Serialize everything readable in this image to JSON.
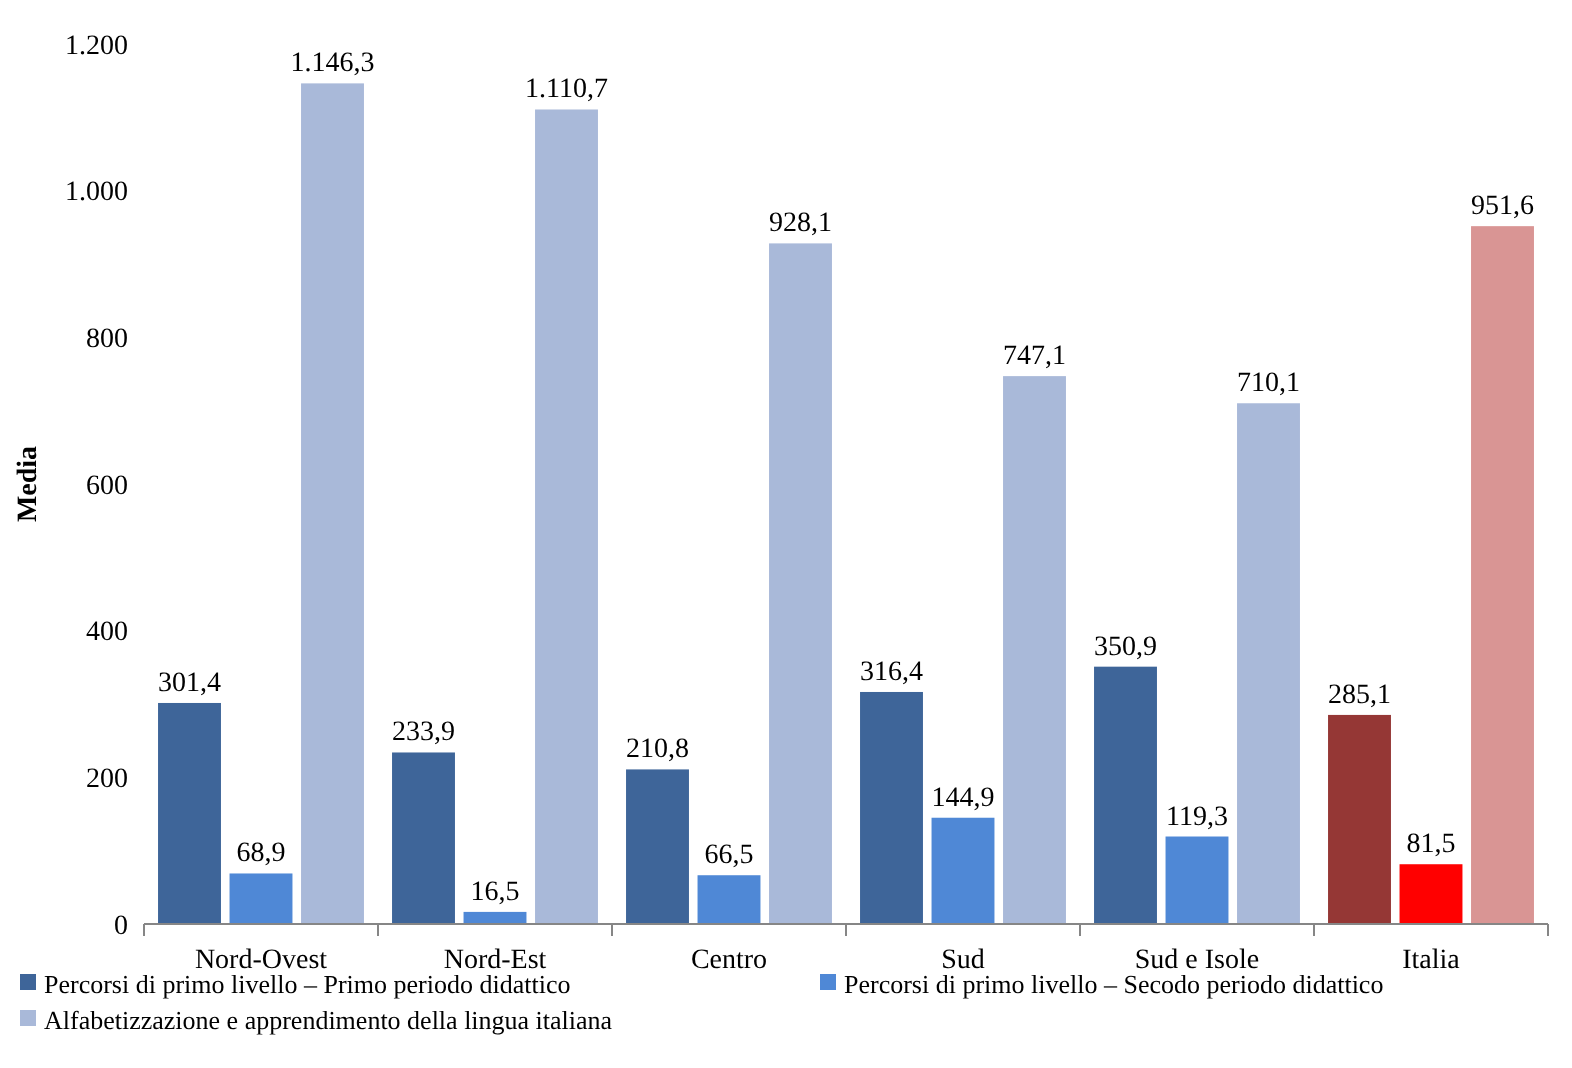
{
  "chart_data": {
    "type": "bar",
    "ylabel": "Media",
    "categories": [
      "Nord-Ovest",
      "Nord-Est",
      "Centro",
      "Sud",
      "Sud e Isole",
      "Italia"
    ],
    "series": [
      {
        "name": "Percorsi di primo livello – Primo periodo didattico",
        "color": "#3e6599",
        "colors": [
          "#3e6599",
          "#3e6599",
          "#3e6599",
          "#3e6599",
          "#3e6599",
          "#953735"
        ],
        "values": [
          301.4,
          233.9,
          210.8,
          316.4,
          350.9,
          285.1
        ],
        "value_labels": [
          "301,4",
          "233,9",
          "210,8",
          "316,4",
          "350,9",
          "285,1"
        ]
      },
      {
        "name": "Percorsi di primo livello – Secodo periodo didattico",
        "color": "#4f88d6",
        "colors": [
          "#4f88d6",
          "#4f88d6",
          "#4f88d6",
          "#4f88d6",
          "#4f88d6",
          "#ff0000"
        ],
        "values": [
          68.9,
          16.5,
          66.5,
          144.9,
          119.3,
          81.5
        ],
        "value_labels": [
          "68,9",
          "16,5",
          "66,5",
          "144,9",
          "119,3",
          "81,5"
        ]
      },
      {
        "name": "Alfabetizzazione e apprendimento della lingua italiana",
        "color": "#a9b9d9",
        "colors": [
          "#a9b9d9",
          "#a9b9d9",
          "#a9b9d9",
          "#a9b9d9",
          "#a9b9d9",
          "#d99594"
        ],
        "values": [
          1146.3,
          1110.7,
          928.1,
          747.1,
          710.1,
          951.6
        ],
        "value_labels": [
          "1.146,3",
          "1.110,7",
          "928,1",
          "747,1",
          "710,1",
          "951,6"
        ]
      }
    ],
    "ylim": [
      0,
      1200
    ],
    "yticks": [
      0,
      200,
      400,
      600,
      800,
      {
        "value": 1000,
        "label": "1.000"
      },
      {
        "value": 1200,
        "label": "1.200"
      }
    ],
    "legend": "bottom",
    "grid": false
  }
}
